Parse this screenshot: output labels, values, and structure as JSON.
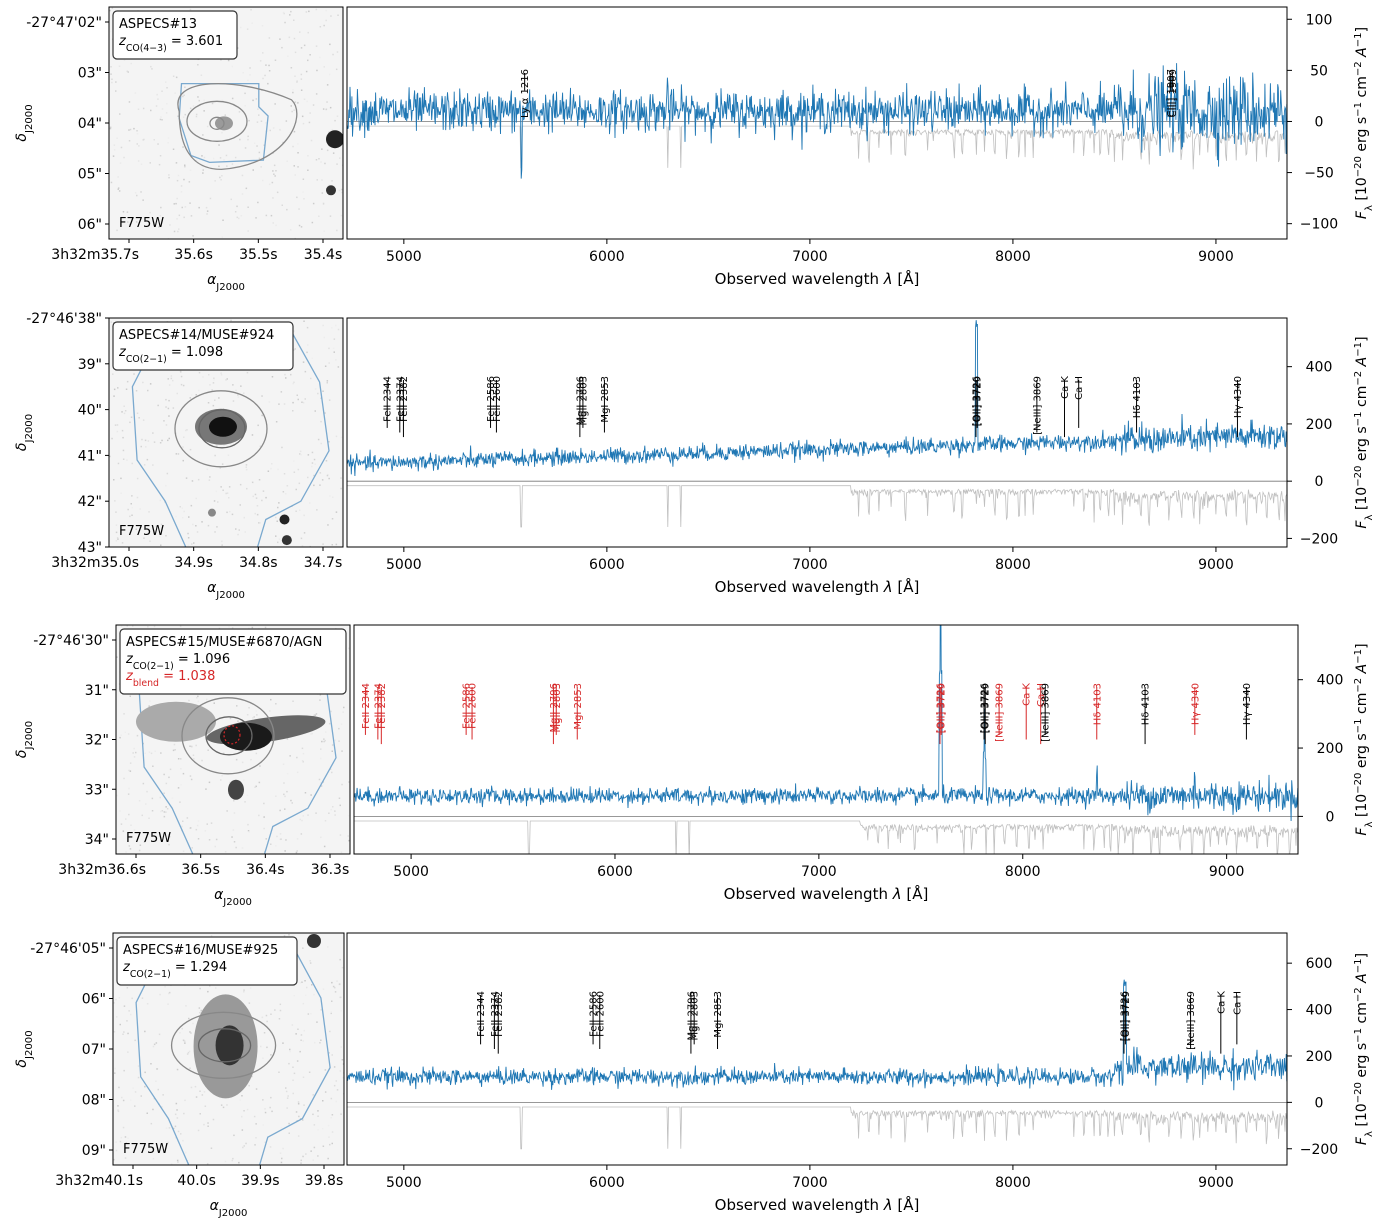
{
  "chart_data": [
    {
      "type": "line",
      "panel": "ASPECS#13",
      "thumbnail": {
        "id_label": "ASPECS#13",
        "z_label": "z_CO(4−3) = 3.601",
        "blend_label": "",
        "filter": "F775W",
        "dec_ticks": [
          "-27°47'02\"",
          "03\"",
          "04\"",
          "05\"",
          "06\""
        ],
        "ra_ticks": [
          "3h32m35.7s",
          "35.6s",
          "35.5s",
          "35.4s"
        ],
        "xlabel": "α_J2000",
        "ylabel": "δ_J2000"
      },
      "xlabel": "Observed wavelength λ [Å]",
      "ylabel": "F_λ [10^-20 erg s^-1 cm^-2 A^-1]",
      "xlim": [
        4720,
        9350
      ],
      "ylim": [
        -115,
        112
      ],
      "xticks": [
        5000,
        6000,
        7000,
        8000,
        9000
      ],
      "yticks": [
        -100,
        -50,
        0,
        50,
        100
      ],
      "continuum": 10,
      "lines": [
        {
          "label": "Ly α 1216",
          "wavelength": 5595,
          "color": "#000000"
        },
        {
          "label": "CIII] 1907",
          "wavelength": 8775,
          "color": "#000000"
        },
        {
          "label": "CIII] 1909",
          "wavelength": 8785,
          "color": "#000000"
        }
      ]
    },
    {
      "type": "line",
      "panel": "ASPECS#14/MUSE#924",
      "thumbnail": {
        "id_label": "ASPECS#14/MUSE#924",
        "z_label": "z_CO(2−1) = 1.098",
        "blend_label": "",
        "filter": "F775W",
        "dec_ticks": [
          "-27°46'38\"",
          "39\"",
          "40\"",
          "41\"",
          "42\"",
          "43\""
        ],
        "ra_ticks": [
          "3h32m35.0s",
          "34.9s",
          "34.8s",
          "34.7s"
        ],
        "xlabel": "α_J2000",
        "ylabel": "δ_J2000"
      },
      "xlabel": "Observed wavelength λ [Å]",
      "ylabel": "F_λ [10^-20 erg s^-1 cm^-2 A^-1]",
      "xlim": [
        4720,
        9350
      ],
      "ylim": [
        -230,
        570
      ],
      "xticks": [
        5000,
        6000,
        7000,
        8000,
        9000
      ],
      "yticks": [
        -200,
        0,
        200,
        400
      ],
      "continuum": 60,
      "lines": [
        {
          "label": "FeII 2344",
          "wavelength": 4918,
          "color": "#000000"
        },
        {
          "label": "FeII 2374",
          "wavelength": 4980,
          "color": "#000000"
        },
        {
          "label": "FeII 2382",
          "wavelength": 4998,
          "color": "#000000"
        },
        {
          "label": "FeII 2586",
          "wavelength": 5427,
          "color": "#000000"
        },
        {
          "label": "FeII 2600",
          "wavelength": 5456,
          "color": "#000000"
        },
        {
          "label": "MgII 2796",
          "wavelength": 5867,
          "color": "#000000"
        },
        {
          "label": "MgII 2803",
          "wavelength": 5882,
          "color": "#000000"
        },
        {
          "label": "MgI 2853",
          "wavelength": 5988,
          "color": "#000000"
        },
        {
          "label": "[OII] 3726",
          "wavelength": 7818,
          "color": "#000000"
        },
        {
          "label": "[OII] 3729",
          "wavelength": 7824,
          "color": "#000000"
        },
        {
          "label": "[NeIII] 3869",
          "wavelength": 8118,
          "color": "#000000"
        },
        {
          "label": "Ca K",
          "wavelength": 8254,
          "color": "#000000"
        },
        {
          "label": "Ca H",
          "wavelength": 8324,
          "color": "#000000"
        },
        {
          "label": "Hδ 4103",
          "wavelength": 8609,
          "color": "#000000"
        },
        {
          "label": "Hγ 4340",
          "wavelength": 9106,
          "color": "#000000"
        }
      ]
    },
    {
      "type": "line",
      "panel": "ASPECS#15/MUSE#6870/AGN",
      "thumbnail": {
        "id_label": "ASPECS#15/MUSE#6870/AGN",
        "z_label": "z_CO(2−1) = 1.096",
        "blend_label": "z_blend = 1.038",
        "filter": "F775W",
        "dec_ticks": [
          "-27°46'30\"",
          "31\"",
          "32\"",
          "33\"",
          "34\""
        ],
        "ra_ticks": [
          "3h32m36.6s",
          "36.5s",
          "36.4s",
          "36.3s"
        ],
        "xlabel": "α_J2000",
        "ylabel": "δ_J2000"
      },
      "xlabel": "Observed wavelength λ [Å]",
      "ylabel": "F_λ [10^-20 erg s^-1 cm^-2 A^-1]",
      "xlim": [
        4720,
        9350
      ],
      "ylim": [
        -110,
        560
      ],
      "xticks": [
        5000,
        6000,
        7000,
        8000,
        9000
      ],
      "yticks": [
        0,
        200,
        400
      ],
      "continuum": 60,
      "lines": [
        {
          "label": "FeII 2344",
          "wavelength": 4776,
          "color": "#d62728"
        },
        {
          "label": "FeII 2374",
          "wavelength": 4837,
          "color": "#d62728"
        },
        {
          "label": "FeII 2382",
          "wavelength": 4854,
          "color": "#d62728"
        },
        {
          "label": "FeII 2586",
          "wavelength": 5270,
          "color": "#d62728"
        },
        {
          "label": "FeII 2600",
          "wavelength": 5299,
          "color": "#d62728"
        },
        {
          "label": "MgII 2796",
          "wavelength": 5698,
          "color": "#d62728"
        },
        {
          "label": "MgII 2803",
          "wavelength": 5712,
          "color": "#d62728"
        },
        {
          "label": "MgI 2853",
          "wavelength": 5815,
          "color": "#d62728"
        },
        {
          "label": "[OII] 3726",
          "wavelength": 7594,
          "color": "#d62728"
        },
        {
          "label": "[OII] 3729",
          "wavelength": 7600,
          "color": "#d62728"
        },
        {
          "label": "[OII] 3726",
          "wavelength": 7810,
          "color": "#000000"
        },
        {
          "label": "[OII] 3729",
          "wavelength": 7816,
          "color": "#000000"
        },
        {
          "label": "[NeIII] 3869",
          "wavelength": 7884,
          "color": "#d62728"
        },
        {
          "label": "Ca K",
          "wavelength": 8017,
          "color": "#d62728"
        },
        {
          "label": "Ca H",
          "wavelength": 8088,
          "color": "#d62728"
        },
        {
          "label": "[NeIII] 3869",
          "wavelength": 8110,
          "color": "#000000"
        },
        {
          "label": "Hδ 4103",
          "wavelength": 8363,
          "color": "#d62728"
        },
        {
          "label": "Hδ 4103",
          "wavelength": 8600,
          "color": "#000000"
        },
        {
          "label": "Hγ 4340",
          "wavelength": 8844,
          "color": "#d62728"
        },
        {
          "label": "Hγ 4340",
          "wavelength": 9097,
          "color": "#000000"
        }
      ]
    },
    {
      "type": "line",
      "panel": "ASPECS#16/MUSE#925",
      "thumbnail": {
        "id_label": "ASPECS#16/MUSE#925",
        "z_label": "z_CO(2−1) = 1.294",
        "blend_label": "",
        "filter": "F775W",
        "dec_ticks": [
          "-27°46'05\"",
          "06\"",
          "07\"",
          "08\"",
          "09\""
        ],
        "ra_ticks": [
          "3h32m40.1s",
          "40.0s",
          "39.9s",
          "39.8s"
        ],
        "xlabel": "α_J2000",
        "ylabel": "δ_J2000"
      },
      "xlabel": "Observed wavelength λ [Å]",
      "ylabel": "F_λ [10^-20 erg s^-1 cm^-2 A^-1]",
      "xlim": [
        4720,
        9350
      ],
      "ylim": [
        -270,
        730
      ],
      "xticks": [
        5000,
        6000,
        7000,
        8000,
        9000
      ],
      "yticks": [
        -200,
        0,
        200,
        400,
        600
      ],
      "continuum": 110,
      "lines": [
        {
          "label": "FeII 2344",
          "wavelength": 5378,
          "color": "#000000"
        },
        {
          "label": "FeII 2374",
          "wavelength": 5446,
          "color": "#000000"
        },
        {
          "label": "FeII 2382",
          "wavelength": 5465,
          "color": "#000000"
        },
        {
          "label": "FeII 2586",
          "wavelength": 5932,
          "color": "#000000"
        },
        {
          "label": "FeII 2600",
          "wavelength": 5965,
          "color": "#000000"
        },
        {
          "label": "MgII 2796",
          "wavelength": 6414,
          "color": "#000000"
        },
        {
          "label": "MgII 2803",
          "wavelength": 6430,
          "color": "#000000"
        },
        {
          "label": "MgI 2853",
          "wavelength": 6545,
          "color": "#000000"
        },
        {
          "label": "[OII] 3726",
          "wavelength": 8547,
          "color": "#000000"
        },
        {
          "label": "[OII] 3729",
          "wavelength": 8554,
          "color": "#000000"
        },
        {
          "label": "[NeIII] 3869",
          "wavelength": 8875,
          "color": "#000000"
        },
        {
          "label": "Ca K",
          "wavelength": 9024,
          "color": "#000000"
        },
        {
          "label": "Ca H",
          "wavelength": 9103,
          "color": "#000000"
        }
      ]
    }
  ]
}
